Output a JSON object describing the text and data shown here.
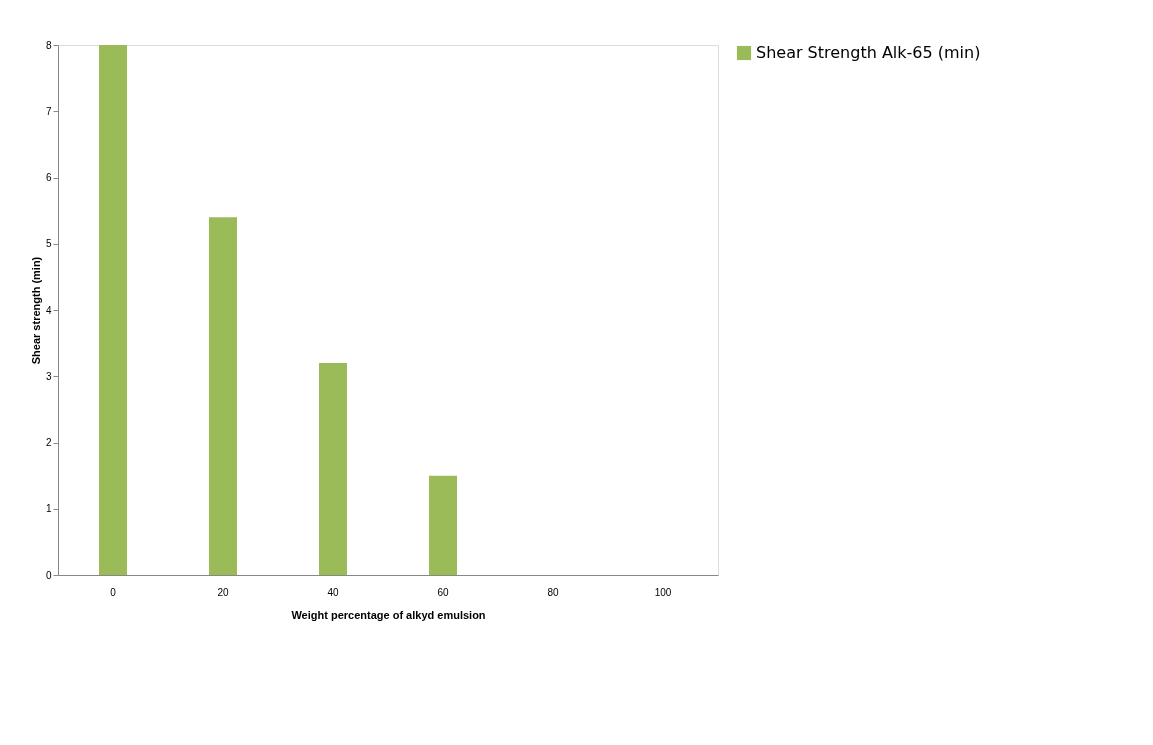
{
  "chart_data": {
    "type": "bar",
    "xlabel": "Weight percentage of alkyd emulsion",
    "ylabel": "Shear strength (min)",
    "categories": [
      "0",
      "20",
      "40",
      "60",
      "80",
      "100"
    ],
    "series": [
      {
        "name": "Shear Strength Alk-65 (min)",
        "color": "#9bbb59",
        "values": [
          8.0,
          5.4,
          3.2,
          1.5,
          0,
          0
        ]
      }
    ],
    "ylim": [
      0,
      8
    ],
    "yticks": [
      0,
      1,
      2,
      3,
      4,
      5,
      6,
      7,
      8
    ],
    "grid": false,
    "legend": "right"
  }
}
